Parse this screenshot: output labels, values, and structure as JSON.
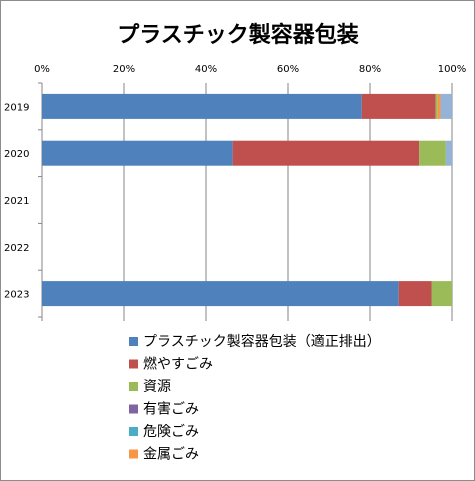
{
  "chart_data": {
    "type": "bar",
    "orientation": "horizontal",
    "stacked": true,
    "percent_stacked": true,
    "title": "プラスチック製容器包装",
    "categories": [
      "2019",
      "2020",
      "2021",
      "2022",
      "2023"
    ],
    "x_ticks": [
      "0%",
      "20%",
      "40%",
      "60%",
      "80%",
      "100%"
    ],
    "xlim": [
      0,
      100
    ],
    "grid": true,
    "legend_position": "bottom",
    "series": [
      {
        "name": "プラスチック製容器包装（適正排出）",
        "color": "#4F81BD",
        "values": [
          78,
          46.5,
          null,
          null,
          87
        ]
      },
      {
        "name": "燃やすごみ",
        "color": "#C0504D",
        "values": [
          18,
          45.5,
          null,
          null,
          8
        ]
      },
      {
        "name": "資源",
        "color": "#9BBB59",
        "values": [
          0.5,
          6.5,
          null,
          null,
          5
        ]
      },
      {
        "name": "有害ごみ",
        "color": "#8064A2",
        "values": [
          0,
          0,
          null,
          null,
          0
        ]
      },
      {
        "name": "危険ごみ",
        "color": "#4BACC6",
        "values": [
          0,
          0,
          null,
          null,
          0
        ]
      },
      {
        "name": "金属ごみ",
        "color": "#F79646",
        "values": [
          0.7,
          0,
          null,
          null,
          0
        ]
      },
      {
        "name": "",
        "color": "#95B3D7",
        "values": [
          2.8,
          1.5,
          null,
          null,
          0
        ]
      }
    ]
  }
}
